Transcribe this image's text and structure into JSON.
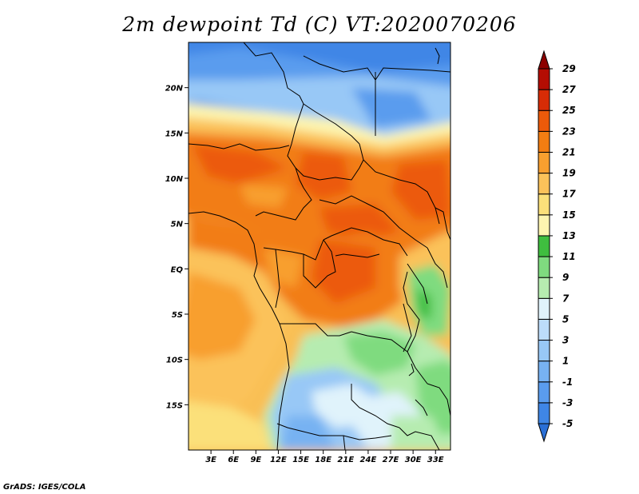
{
  "title": "2m dewpoint Td (C) VT:2020070206",
  "credit": "GrADS: IGES/COLA",
  "map": {
    "lat_range": [
      -20,
      25
    ],
    "lon_range": [
      0,
      35
    ],
    "lat_ticks": [
      {
        "value": 20,
        "label": "20N"
      },
      {
        "value": 15,
        "label": "15N"
      },
      {
        "value": 10,
        "label": "10N"
      },
      {
        "value": 5,
        "label": "5N"
      },
      {
        "value": 0,
        "label": "EQ"
      },
      {
        "value": -5,
        "label": "5S"
      },
      {
        "value": -10,
        "label": "10S"
      },
      {
        "value": -15,
        "label": "15S"
      }
    ],
    "lon_ticks": [
      {
        "value": 3,
        "label": "3E"
      },
      {
        "value": 6,
        "label": "6E"
      },
      {
        "value": 9,
        "label": "9E"
      },
      {
        "value": 12,
        "label": "12E"
      },
      {
        "value": 15,
        "label": "15E"
      },
      {
        "value": 18,
        "label": "18E"
      },
      {
        "value": 21,
        "label": "21E"
      },
      {
        "value": 24,
        "label": "24E"
      },
      {
        "value": 27,
        "label": "27E"
      },
      {
        "value": 30,
        "label": "30E"
      },
      {
        "value": 33,
        "label": "33E"
      }
    ]
  },
  "colorbar": {
    "levels": [
      -5,
      -3,
      -1,
      1,
      3,
      5,
      7,
      9,
      11,
      13,
      15,
      17,
      19,
      21,
      23,
      25,
      27,
      29
    ],
    "labels": [
      "-5",
      "-3",
      "-1",
      "1",
      "3",
      "5",
      "7",
      "9",
      "11",
      "13",
      "15",
      "17",
      "19",
      "21",
      "23",
      "25",
      "27",
      "29"
    ],
    "colors": [
      "#2a6fd6",
      "#3f86e6",
      "#5a9cee",
      "#77b2f2",
      "#98c8f6",
      "#bcdcfa",
      "#e0f3fb",
      "#b6ecb0",
      "#7fdb7f",
      "#3fbe3f",
      "#fdf5b0",
      "#fbe07a",
      "#fbc25a",
      "#f89f2f",
      "#f27d12",
      "#ec5a0a",
      "#d72c06",
      "#b40d03",
      "#8c0000"
    ]
  }
}
